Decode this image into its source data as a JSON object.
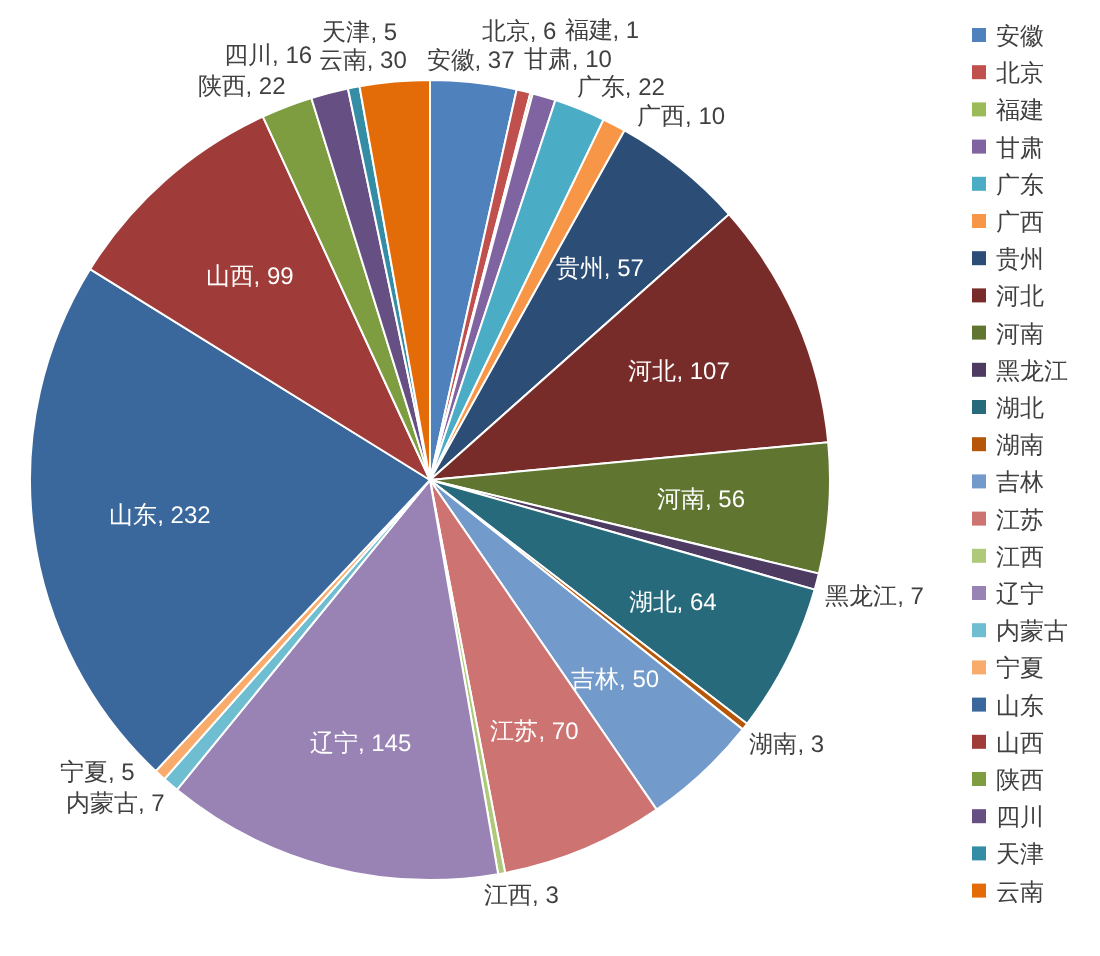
{
  "chart_data": {
    "type": "pie",
    "legend": "right",
    "categories": [
      "安徽",
      "北京",
      "福建",
      "甘肃",
      "广东",
      "广西",
      "贵州",
      "河北",
      "河南",
      "黑龙江",
      "湖北",
      "湖南",
      "吉林",
      "江苏",
      "江西",
      "辽宁",
      "内蒙古",
      "宁夏",
      "山东",
      "山西",
      "陕西",
      "四川",
      "天津",
      "云南"
    ],
    "values": [
      37,
      6,
      1,
      10,
      22,
      10,
      57,
      107,
      56,
      7,
      64,
      3,
      50,
      70,
      3,
      145,
      7,
      5,
      232,
      99,
      22,
      16,
      5,
      30
    ],
    "value_labels": [
      "安徽, 37",
      "北京, 6",
      "福建, 1",
      "甘肃, 10",
      "广东, 22",
      "广西, 10",
      "贵州, 57",
      "河北, 107",
      "河南, 56",
      "黑龙江, 7",
      "湖北, 64",
      "湖南, 3",
      "吉林, 50",
      "江苏, 70",
      "江西, 3",
      "辽宁, 145",
      "内蒙古, 7",
      "宁夏, 5",
      "山东, 232",
      "山西, 99",
      "陕西, 22",
      "四川, 16",
      "天津, 5",
      "云南, 30"
    ],
    "colors": [
      "#4f81bd",
      "#c0504d",
      "#9bbb59",
      "#8064a2",
      "#4bacc6",
      "#f79646",
      "#2c4d75",
      "#772c2a",
      "#5f7530",
      "#4d3b62",
      "#276a7c",
      "#b65708",
      "#729aca",
      "#cd7371",
      "#afc97a",
      "#9983b5",
      "#6fbdd1",
      "#f9ab6b",
      "#3a679c",
      "#9f3b38",
      "#7e9c40",
      "#664f83",
      "#358da5",
      "#e36c09"
    ]
  }
}
